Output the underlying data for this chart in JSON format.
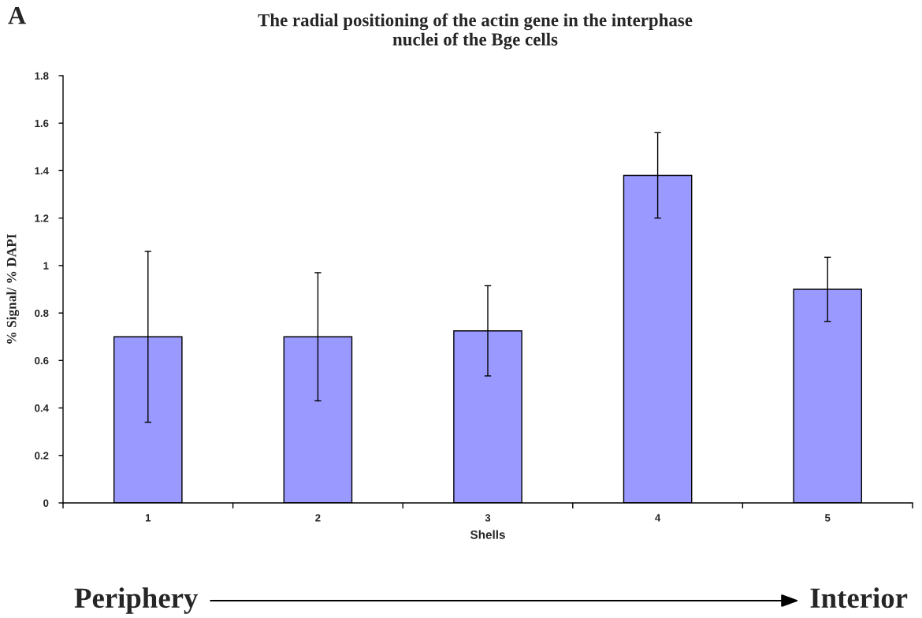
{
  "chart_data": {
    "type": "bar",
    "title": "The radial positioning of the actin gene in the interphase\nnuclei of the Bge cells",
    "xlabel": "Shells",
    "ylabel": "% Signal/ % DAPI",
    "categories": [
      "1",
      "2",
      "3",
      "4",
      "5"
    ],
    "values": [
      0.7,
      0.7,
      0.725,
      1.38,
      0.9
    ],
    "errors": [
      0.36,
      0.27,
      0.19,
      0.18,
      0.135
    ],
    "color": "#9999ff",
    "ylim": [
      0,
      1.8
    ],
    "yticks": [
      0,
      0.2,
      0.4,
      0.6,
      0.8,
      1,
      1.2,
      1.4,
      1.6,
      1.8
    ],
    "annotations": [
      "A",
      "Periphery",
      "Interior"
    ]
  }
}
